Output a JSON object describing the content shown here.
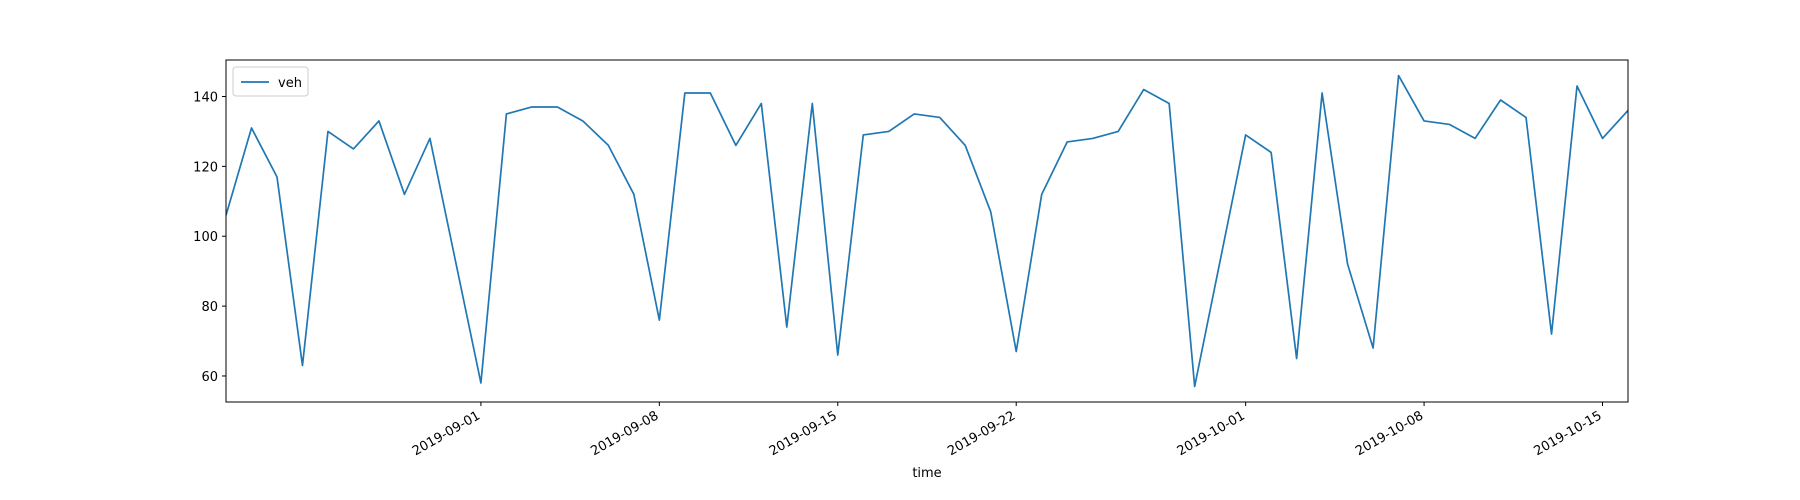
{
  "chart_data": {
    "type": "line",
    "x_label": "time",
    "x": [
      "2019-08-22",
      "2019-08-23",
      "2019-08-24",
      "2019-08-25",
      "2019-08-26",
      "2019-08-27",
      "2019-08-28",
      "2019-08-29",
      "2019-08-30",
      "2019-08-31",
      "2019-09-01",
      "2019-09-02",
      "2019-09-03",
      "2019-09-04",
      "2019-09-05",
      "2019-09-06",
      "2019-09-07",
      "2019-09-08",
      "2019-09-09",
      "2019-09-10",
      "2019-09-11",
      "2019-09-12",
      "2019-09-13",
      "2019-09-14",
      "2019-09-15",
      "2019-09-16",
      "2019-09-17",
      "2019-09-18",
      "2019-09-19",
      "2019-09-20",
      "2019-09-21",
      "2019-09-22",
      "2019-09-23",
      "2019-09-24",
      "2019-09-25",
      "2019-09-26",
      "2019-09-27",
      "2019-09-28",
      "2019-09-29",
      "2019-09-30",
      "2019-10-01",
      "2019-10-02",
      "2019-10-03",
      "2019-10-04",
      "2019-10-05",
      "2019-10-06",
      "2019-10-07",
      "2019-10-08",
      "2019-10-09",
      "2019-10-10",
      "2019-10-11",
      "2019-10-12",
      "2019-10-13",
      "2019-10-14",
      "2019-10-15",
      "2019-10-16"
    ],
    "series": [
      {
        "name": "veh",
        "color": "#1f77b4",
        "values": [
          106,
          131,
          117,
          63,
          130,
          125,
          133,
          112,
          128,
          93,
          58,
          135,
          137,
          137,
          133,
          126,
          112,
          76,
          141,
          141,
          126,
          138,
          74,
          138,
          66,
          129,
          130,
          135,
          134,
          126,
          107,
          67,
          112,
          127,
          128,
          130,
          142,
          138,
          57,
          93,
          129,
          124,
          65,
          141,
          92,
          68,
          146,
          133,
          132,
          128,
          139,
          134,
          72,
          143,
          128,
          136
        ]
      }
    ],
    "xlim": [
      "2019-08-22",
      "2019-10-16"
    ],
    "xticks": [
      "2019-09-01",
      "2019-09-08",
      "2019-09-15",
      "2019-09-22",
      "2019-10-01",
      "2019-10-08",
      "2019-10-15"
    ],
    "ylim": [
      52.55,
      150.45
    ],
    "yticks": [
      60,
      80,
      100,
      120,
      140
    ],
    "legend": "upper left",
    "grid": false
  }
}
